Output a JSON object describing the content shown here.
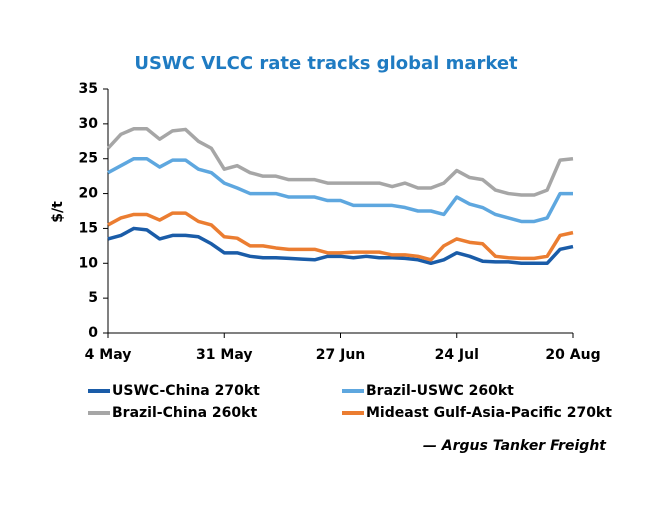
{
  "chart_data": {
    "type": "line",
    "title": "USWC VLCC rate tracks global market",
    "y_label": "$/t",
    "source": "— Argus Tanker Freight",
    "x": [
      0,
      3,
      6,
      9,
      12,
      15,
      18,
      21,
      24,
      27,
      30,
      33,
      36,
      39,
      42,
      45,
      48,
      51,
      54,
      57,
      60,
      63,
      66,
      69,
      72,
      75,
      78,
      81,
      84,
      87,
      90,
      93,
      96,
      99,
      102,
      105,
      108
    ],
    "xlim": [
      0,
      108
    ],
    "xticks": [
      {
        "value": 0,
        "label": "4 May"
      },
      {
        "value": 27,
        "label": "31 May"
      },
      {
        "value": 54,
        "label": "27 Jun"
      },
      {
        "value": 81,
        "label": "24 Jul"
      },
      {
        "value": 108,
        "label": "20 Aug"
      }
    ],
    "ylim": [
      0,
      35
    ],
    "yticks": [
      0,
      5,
      10,
      15,
      20,
      25,
      30,
      35
    ],
    "series": [
      {
        "name": "USWC-China 270kt",
        "color": "#1a5ca8",
        "values": [
          13.5,
          14,
          15,
          14.8,
          13.5,
          14,
          14,
          13.8,
          12.8,
          11.5,
          11.5,
          11,
          10.8,
          10.8,
          10.7,
          10.6,
          10.5,
          11,
          11,
          10.8,
          11,
          10.8,
          10.8,
          10.7,
          10.5,
          10,
          10.5,
          11.5,
          11,
          10.3,
          10.2,
          10.2,
          10,
          10,
          10,
          12,
          12.4
        ]
      },
      {
        "name": "Brazil-USWC 260kt",
        "color": "#5ea7df",
        "values": [
          23,
          24,
          25,
          25,
          23.8,
          24.8,
          24.8,
          23.5,
          23,
          21.5,
          20.8,
          20,
          20,
          20,
          19.5,
          19.5,
          19.5,
          19,
          19,
          18.3,
          18.3,
          18.3,
          18.3,
          18,
          17.5,
          17.5,
          17,
          19.5,
          18.5,
          18,
          17,
          16.5,
          16,
          16,
          16.5,
          20,
          20
        ]
      },
      {
        "name": "Brazil-China 260kt",
        "color": "#a6a6a6",
        "values": [
          26.5,
          28.5,
          29.3,
          29.3,
          27.8,
          29,
          29.2,
          27.5,
          26.5,
          23.5,
          24,
          23,
          22.5,
          22.5,
          22,
          22,
          22,
          21.5,
          21.5,
          21.5,
          21.5,
          21.5,
          21,
          21.5,
          20.8,
          20.8,
          21.5,
          23.3,
          22.3,
          22,
          20.5,
          20,
          19.8,
          19.8,
          20.5,
          24.8,
          25
        ]
      },
      {
        "name": "Mideast Gulf-Asia-Pacific 270kt",
        "color": "#eb7d31",
        "values": [
          15.5,
          16.5,
          17,
          17,
          16.2,
          17.2,
          17.2,
          16,
          15.5,
          13.8,
          13.6,
          12.5,
          12.5,
          12.2,
          12,
          12,
          12,
          11.5,
          11.5,
          11.6,
          11.6,
          11.6,
          11.2,
          11.2,
          11,
          10.5,
          12.5,
          13.5,
          13,
          12.8,
          11,
          10.8,
          10.7,
          10.7,
          11,
          14,
          14.4
        ]
      }
    ],
    "legend": "bottom",
    "grid": false
  }
}
